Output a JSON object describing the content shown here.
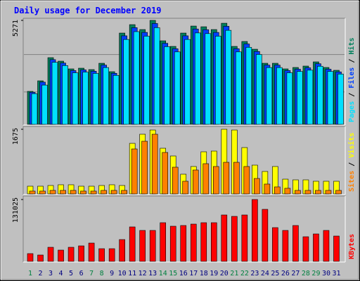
{
  "chart_data": [
    {
      "type": "bar",
      "title": "Daily usage for December 2019",
      "ylim": [
        0,
        5271
      ],
      "yticks": [
        5271
      ],
      "legend_separator": "/",
      "series": [
        {
          "name": "Hits",
          "color": "#00805c",
          "values": [
            1673,
            2207,
            3382,
            3204,
            2812,
            2848,
            2777,
            3097,
            2670,
            4628,
            5055,
            4806,
            5271,
            4236,
            3952,
            4628,
            4984,
            4948,
            4806,
            5126,
            3952,
            4201,
            3809,
            3097,
            3097,
            2812,
            2884,
            2955,
            3168,
            2884,
            2741
          ]
        },
        {
          "name": "Files",
          "color": "#0040ff",
          "values": [
            1623,
            2141,
            3281,
            3108,
            2728,
            2763,
            2694,
            3004,
            2590,
            4489,
            4903,
            4662,
            5113,
            4109,
            3833,
            4489,
            4834,
            4800,
            4662,
            4972,
            3833,
            4075,
            3695,
            3004,
            3004,
            2728,
            2797,
            2866,
            3073,
            2797,
            2659
          ]
        },
        {
          "name": "Pages",
          "color": "#00e0ff",
          "values": [
            1556,
            1991,
            3145,
            2980,
            2615,
            2649,
            2583,
            2880,
            2483,
            4304,
            4701,
            4470,
            4902,
            3939,
            3675,
            4304,
            4635,
            4602,
            4470,
            4767,
            3675,
            3907,
            3542,
            2880,
            2880,
            2615,
            2682,
            2748,
            2946,
            2682,
            2549
          ]
        }
      ]
    },
    {
      "type": "bar",
      "ylim": [
        0,
        1675
      ],
      "yticks": [
        1675
      ],
      "legend_separator": "/",
      "series": [
        {
          "name": "Visits",
          "color": "#ffff00",
          "values": [
            200,
            200,
            218,
            237,
            237,
            200,
            200,
            218,
            237,
            218,
            1310,
            1547,
            1656,
            1183,
            983,
            510,
            710,
            1092,
            1110,
            1675,
            1656,
            1201,
            746,
            582,
            710,
            382,
            364,
            364,
            328,
            328,
            328
          ]
        },
        {
          "name": "Sites",
          "color": "#ff8000",
          "values": [
            73,
            73,
            91,
            91,
            91,
            73,
            73,
            91,
            91,
            91,
            1165,
            1365,
            1547,
            1074,
            692,
            328,
            619,
            783,
            710,
            819,
            819,
            710,
            400,
            255,
            182,
            146,
            91,
            91,
            91,
            91,
            91
          ]
        }
      ]
    },
    {
      "type": "bar",
      "ylim": [
        0,
        131025
      ],
      "yticks": [
        131025
      ],
      "categories": [
        "1",
        "2",
        "3",
        "4",
        "5",
        "6",
        "7",
        "8",
        "9",
        "10",
        "11",
        "12",
        "13",
        "14",
        "15",
        "16",
        "17",
        "18",
        "19",
        "20",
        "21",
        "22",
        "23",
        "24",
        "25",
        "26",
        "27",
        "28",
        "29",
        "30",
        "31"
      ],
      "category_colors": [
        "#008040",
        "#000080",
        "#000080",
        "#000080",
        "#000080",
        "#000080",
        "#008040",
        "#008040",
        "#000080",
        "#000080",
        "#000080",
        "#000080",
        "#000080",
        "#008040",
        "#008040",
        "#000080",
        "#000080",
        "#000080",
        "#000080",
        "#000080",
        "#008040",
        "#008040",
        "#000080",
        "#000080",
        "#000080",
        "#000080",
        "#000080",
        "#008040",
        "#008040",
        "#000080",
        "#000080"
      ],
      "series": [
        {
          "name": "KBytes",
          "color": "#ff0000",
          "values": [
            16379,
            13401,
            29780,
            23824,
            29780,
            32758,
            38714,
            26802,
            26802,
            46159,
            72961,
            65516,
            65516,
            81895,
            74450,
            75939,
            78917,
            81895,
            81895,
            98274,
            95296,
            98274,
            131025,
            110186,
            71472,
            65516,
            75939,
            52115,
            58071,
            65516,
            53604
          ]
        }
      ]
    }
  ]
}
